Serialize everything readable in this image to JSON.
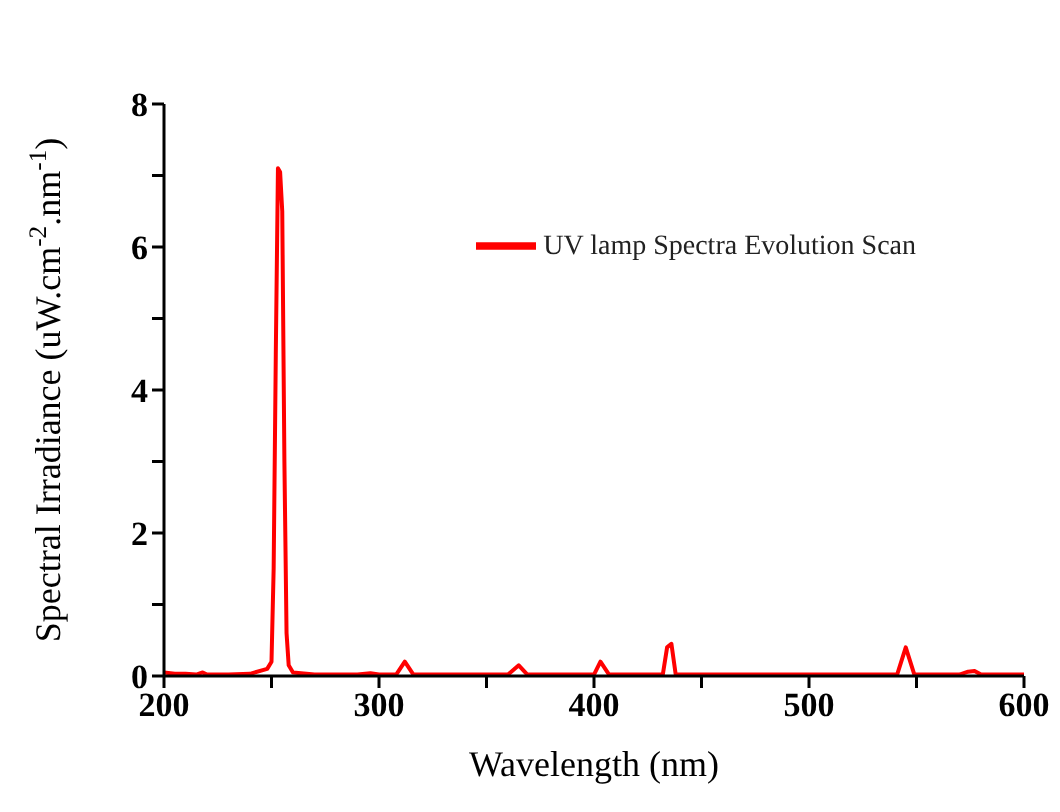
{
  "chart_data": {
    "type": "line",
    "xlabel": "Wavelength (nm)",
    "ylabel": "Spectral Irradiance (uW.cm$^{-2}$.nm$^{-1}$)",
    "xlim": [
      200,
      600
    ],
    "xticks": [
      200,
      {
        "value": 250,
        "label": null
      },
      300,
      {
        "value": 350,
        "label": null
      },
      400,
      {
        "value": 450,
        "label": null
      },
      500,
      {
        "value": 550,
        "label": null
      },
      600
    ],
    "ylim": [
      0,
      8
    ],
    "yticks": [
      0,
      {
        "value": 1,
        "label": null
      },
      2,
      {
        "value": 3,
        "label": null
      },
      4,
      {
        "value": 5,
        "label": null
      },
      6,
      {
        "value": 7,
        "label": null
      },
      8
    ],
    "legend": "top right",
    "marker": "none",
    "line_style": "solid",
    "series": [
      {
        "name": "UV lamp Spectra Evolution Scan",
        "color": "#ff0000",
        "x": [
          200,
          205,
          210,
          215,
          218,
          220,
          230,
          240,
          248,
          250,
          251,
          252,
          253,
          254,
          255,
          256,
          257,
          258,
          260,
          270,
          290,
          296,
          300,
          308,
          312,
          316,
          330,
          360,
          365,
          369,
          380,
          400,
          403,
          407,
          420,
          432,
          434,
          436,
          438,
          460,
          500,
          541,
          545,
          549,
          570,
          574,
          577,
          580,
          600
        ],
        "values": [
          0.05,
          0.03,
          0.03,
          0.02,
          0.05,
          0.02,
          0.02,
          0.03,
          0.1,
          0.2,
          1.5,
          4.5,
          7.1,
          7.05,
          6.5,
          3,
          0.6,
          0.15,
          0.05,
          0.02,
          0.02,
          0.04,
          0.02,
          0.02,
          0.2,
          0.02,
          0.02,
          0.02,
          0.15,
          0.02,
          0.02,
          0.02,
          0.2,
          0.02,
          0.02,
          0.02,
          0.4,
          0.45,
          0.02,
          0.02,
          0.02,
          0.02,
          0.4,
          0.02,
          0.02,
          0.06,
          0.07,
          0.02,
          0.02
        ]
      }
    ]
  }
}
